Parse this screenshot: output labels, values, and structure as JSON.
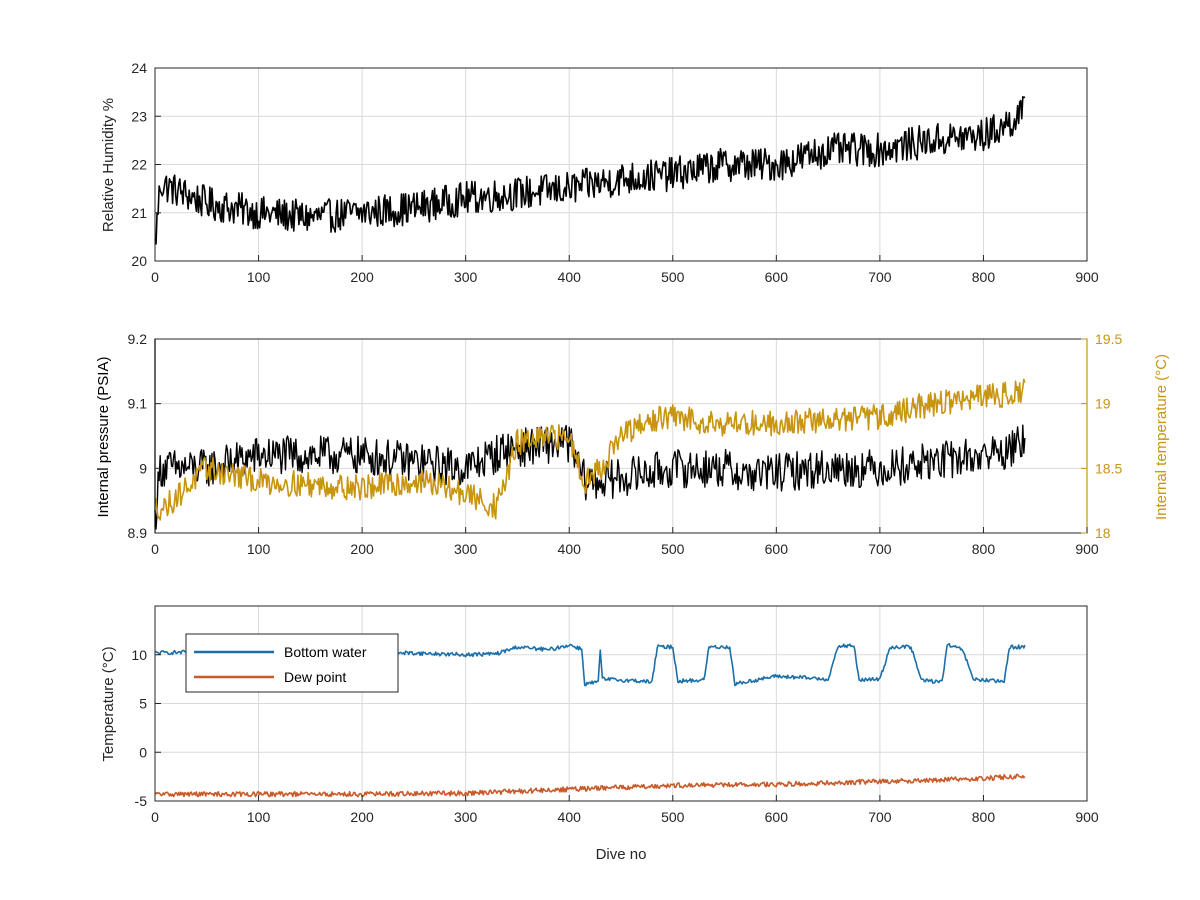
{
  "colors": {
    "black": "#000000",
    "gold": "#C89511",
    "blue": "#1B6FA8",
    "orange": "#C85A2A",
    "grid": "#DADADA",
    "axis": "#262626"
  },
  "chart_data": [
    {
      "type": "line",
      "xlabel": "",
      "ylabel": "Relative Humidity %",
      "xlim": [
        0,
        900
      ],
      "ylim": [
        20,
        24
      ],
      "xticks": [
        "0",
        "100",
        "200",
        "300",
        "400",
        "500",
        "600",
        "700",
        "800",
        "900"
      ],
      "yticks": [
        "20",
        "21",
        "22",
        "23",
        "24"
      ],
      "grid": true,
      "series": [
        {
          "color": "#000000",
          "anchors": [
            [
              0,
              20.3
            ],
            [
              5,
              21.6
            ],
            [
              50,
              21.2
            ],
            [
              100,
              21.0
            ],
            [
              150,
              20.9
            ],
            [
              200,
              21.0
            ],
            [
              250,
              21.1
            ],
            [
              300,
              21.3
            ],
            [
              350,
              21.4
            ],
            [
              400,
              21.5
            ],
            [
              450,
              21.7
            ],
            [
              500,
              21.8
            ],
            [
              550,
              22.0
            ],
            [
              600,
              22.0
            ],
            [
              650,
              22.3
            ],
            [
              700,
              22.3
            ],
            [
              750,
              22.5
            ],
            [
              800,
              22.6
            ],
            [
              820,
              22.8
            ],
            [
              840,
              23.1
            ]
          ],
          "noise": 0.35,
          "noise_extremes": [
            20.3,
            23.8
          ]
        }
      ]
    },
    {
      "type": "line",
      "xlabel": "",
      "ylabel": "Internal pressure (PSIA)",
      "y2label": "Internal temperature (°C)",
      "xlim": [
        0,
        900
      ],
      "ylim": [
        8.9,
        9.2
      ],
      "y2lim": [
        18,
        19.5
      ],
      "xticks": [
        "0",
        "100",
        "200",
        "300",
        "400",
        "500",
        "600",
        "700",
        "800",
        "900"
      ],
      "yticks": [
        "8.9",
        "9",
        "9.1",
        "9.2"
      ],
      "y2ticks": [
        "18",
        "18.5",
        "19",
        "19.5"
      ],
      "grid": true,
      "series": [
        {
          "axis": "left",
          "color": "#000000",
          "anchors": [
            [
              0,
              8.92
            ],
            [
              5,
              9.0
            ],
            [
              50,
              9.0
            ],
            [
              100,
              9.02
            ],
            [
              200,
              9.02
            ],
            [
              300,
              9.0
            ],
            [
              340,
              9.03
            ],
            [
              400,
              9.04
            ],
            [
              415,
              8.98
            ],
            [
              430,
              8.98
            ],
            [
              500,
              9.0
            ],
            [
              550,
              9.0
            ],
            [
              570,
              8.99
            ],
            [
              650,
              9.0
            ],
            [
              700,
              9.0
            ],
            [
              750,
              9.01
            ],
            [
              800,
              9.02
            ],
            [
              830,
              9.03
            ],
            [
              840,
              9.05
            ]
          ],
          "noise": 0.03
        },
        {
          "axis": "right",
          "color": "#C89511",
          "anchors": [
            [
              0,
              18.2
            ],
            [
              10,
              18.2
            ],
            [
              50,
              18.5
            ],
            [
              100,
              18.4
            ],
            [
              200,
              18.35
            ],
            [
              260,
              18.4
            ],
            [
              300,
              18.3
            ],
            [
              330,
              18.2
            ],
            [
              350,
              18.7
            ],
            [
              400,
              18.75
            ],
            [
              415,
              18.4
            ],
            [
              430,
              18.5
            ],
            [
              450,
              18.75
            ],
            [
              490,
              18.9
            ],
            [
              550,
              18.85
            ],
            [
              600,
              18.85
            ],
            [
              700,
              18.9
            ],
            [
              750,
              19.0
            ],
            [
              800,
              19.05
            ],
            [
              840,
              19.1
            ]
          ],
          "noise": 0.1
        }
      ]
    },
    {
      "type": "line",
      "xlabel": "Dive no",
      "ylabel": "Temperature (°C)",
      "xlim": [
        0,
        900
      ],
      "ylim": [
        -5,
        15
      ],
      "xticks": [
        "0",
        "100",
        "200",
        "300",
        "400",
        "500",
        "600",
        "700",
        "800",
        "900"
      ],
      "yticks": [
        "-5",
        "0",
        "5",
        "10"
      ],
      "grid": true,
      "legend": "top-left",
      "series": [
        {
          "name": "Bottom water",
          "color": "#1B6FA8",
          "anchors": [
            [
              0,
              10.2
            ],
            [
              120,
              10.4
            ],
            [
              240,
              10.2
            ],
            [
              300,
              10.0
            ],
            [
              330,
              10.1
            ],
            [
              350,
              10.8
            ],
            [
              380,
              10.5
            ],
            [
              400,
              11.0
            ],
            [
              412,
              10.6
            ],
            [
              415,
              7.0
            ],
            [
              428,
              7.2
            ],
            [
              430,
              10.5
            ],
            [
              432,
              7.5
            ],
            [
              470,
              7.3
            ],
            [
              480,
              7.2
            ],
            [
              485,
              10.8
            ],
            [
              500,
              10.8
            ],
            [
              505,
              7.3
            ],
            [
              530,
              7.4
            ],
            [
              535,
              10.8
            ],
            [
              555,
              10.8
            ],
            [
              560,
              7.0
            ],
            [
              600,
              7.8
            ],
            [
              650,
              7.5
            ],
            [
              660,
              10.9
            ],
            [
              675,
              10.9
            ],
            [
              680,
              7.4
            ],
            [
              700,
              7.5
            ],
            [
              710,
              10.8
            ],
            [
              730,
              10.8
            ],
            [
              740,
              7.4
            ],
            [
              760,
              7.2
            ],
            [
              765,
              11.0
            ],
            [
              780,
              10.5
            ],
            [
              790,
              7.5
            ],
            [
              820,
              7.2
            ],
            [
              825,
              10.8
            ],
            [
              840,
              10.8
            ]
          ],
          "noise": 0.2
        },
        {
          "name": "Dew point",
          "color": "#C85A2A",
          "anchors": [
            [
              0,
              -4.3
            ],
            [
              100,
              -4.3
            ],
            [
              200,
              -4.3
            ],
            [
              300,
              -4.2
            ],
            [
              400,
              -3.8
            ],
            [
              500,
              -3.4
            ],
            [
              600,
              -3.3
            ],
            [
              700,
              -3.0
            ],
            [
              800,
              -2.7
            ],
            [
              840,
              -2.4
            ]
          ],
          "noise": 0.25
        }
      ]
    }
  ]
}
